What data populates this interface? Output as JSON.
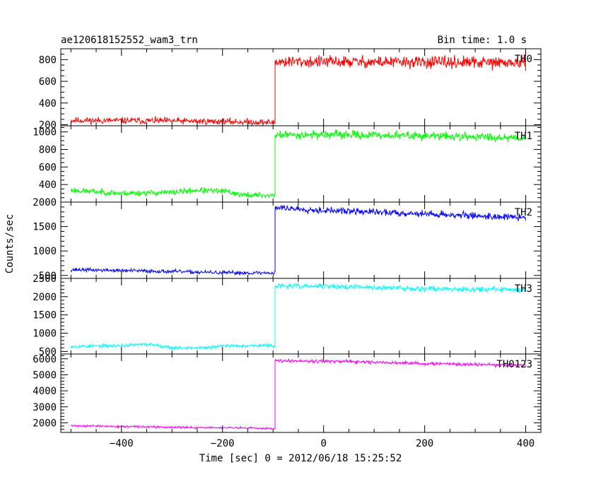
{
  "chart_data": {
    "type": "line",
    "title": "ae120618152552_wam3_trn",
    "subtitle": "Bin time: 1.0 s",
    "xlabel": "Time [sec] 0 = 2012/06/18 15:25:52",
    "ylabel": "Counts/sec",
    "xlim": [
      -520,
      430
    ],
    "x_ticks": [
      -400,
      -200,
      0,
      200,
      400
    ],
    "x_tick_labels": [
      "−400",
      "−200",
      "0",
      "200",
      "400"
    ],
    "x_start": -500,
    "x_end": 400,
    "step_time": -96,
    "grid": false,
    "legend": "none",
    "panels": [
      {
        "name": "TH0",
        "color": "#ff0000",
        "ylim": [
          190,
          900
        ],
        "y_ticks": [
          200,
          400,
          600,
          800
        ],
        "y_tick_labels": [
          "200",
          "400",
          "600",
          "800"
        ],
        "pre_points": [
          [
            -500,
            240
          ],
          [
            -300,
            235
          ],
          [
            -150,
            225
          ],
          [
            -96,
            220
          ]
        ],
        "post_points": [
          [
            -96,
            780
          ],
          [
            0,
            780
          ],
          [
            200,
            775
          ],
          [
            400,
            770
          ]
        ],
        "noise_pre": 35,
        "noise_post": 65,
        "seed": 11
      },
      {
        "name": "TH1",
        "color": "#00ff00",
        "ylim": [
          200,
          1070
        ],
        "y_ticks": [
          400,
          600,
          800,
          1000
        ],
        "y_tick_labels": [
          "400",
          "600",
          "800",
          "1000"
        ],
        "pre_points": [
          [
            -500,
            335
          ],
          [
            -400,
            300
          ],
          [
            -300,
            310
          ],
          [
            -250,
            335
          ],
          [
            -190,
            320
          ],
          [
            -160,
            280
          ],
          [
            -96,
            275
          ]
        ],
        "post_points": [
          [
            -96,
            965
          ],
          [
            0,
            970
          ],
          [
            200,
            955
          ],
          [
            400,
            935
          ]
        ],
        "noise_pre": 40,
        "noise_post": 55,
        "seed": 23
      },
      {
        "name": "TH2",
        "color": "#0000ff",
        "ylim": [
          440,
          2000
        ],
        "y_ticks": [
          500,
          1000,
          1500,
          2000
        ],
        "y_tick_labels": [
          "500",
          "1000",
          "1500",
          "2000"
        ],
        "pre_points": [
          [
            -500,
            620
          ],
          [
            -300,
            580
          ],
          [
            -200,
            555
          ],
          [
            -96,
            550
          ]
        ],
        "post_points": [
          [
            -96,
            1890
          ],
          [
            0,
            1830
          ],
          [
            200,
            1760
          ],
          [
            400,
            1680
          ]
        ],
        "noise_pre": 45,
        "noise_post": 80,
        "seed": 37
      },
      {
        "name": "TH3",
        "color": "#00ffff",
        "ylim": [
          430,
          2500
        ],
        "y_ticks": [
          500,
          1000,
          1500,
          2000,
          2500
        ],
        "y_tick_labels": [
          "500",
          "1000",
          "1500",
          "2000",
          "2500"
        ],
        "pre_points": [
          [
            -500,
            640
          ],
          [
            -400,
            660
          ],
          [
            -340,
            700
          ],
          [
            -300,
            600
          ],
          [
            -230,
            600
          ],
          [
            -190,
            660
          ],
          [
            -96,
            660
          ]
        ],
        "post_points": [
          [
            -96,
            2290
          ],
          [
            0,
            2280
          ],
          [
            200,
            2220
          ],
          [
            400,
            2190
          ]
        ],
        "noise_pre": 55,
        "noise_post": 85,
        "seed": 53
      },
      {
        "name": "TH0123",
        "color": "#ff00ff",
        "ylim": [
          1400,
          6300
        ],
        "y_ticks": [
          2000,
          3000,
          4000,
          5000,
          6000
        ],
        "y_tick_labels": [
          "2000",
          "3000",
          "4000",
          "5000",
          "6000"
        ],
        "pre_points": [
          [
            -500,
            1820
          ],
          [
            -300,
            1720
          ],
          [
            -96,
            1650
          ]
        ],
        "post_points": [
          [
            -96,
            5900
          ],
          [
            0,
            5850
          ],
          [
            200,
            5700
          ],
          [
            400,
            5580
          ]
        ],
        "noise_pre": 80,
        "noise_post": 120,
        "seed": 71
      }
    ]
  }
}
